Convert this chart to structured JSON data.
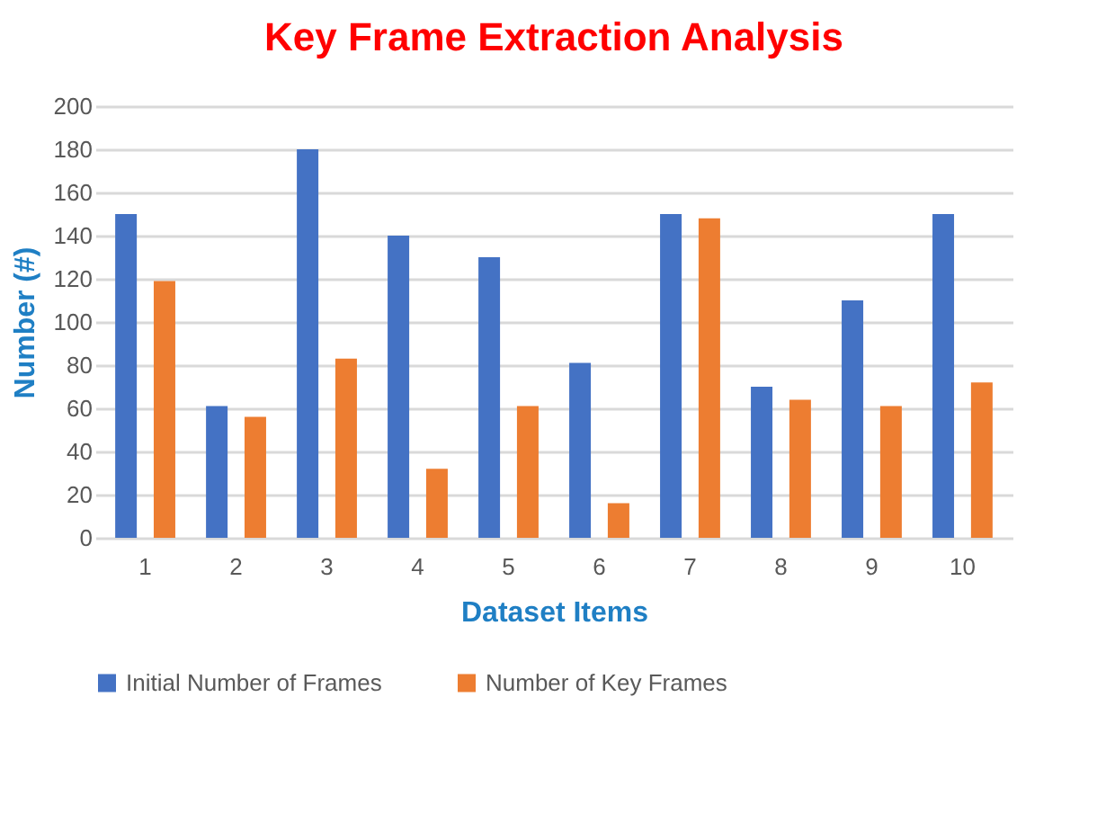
{
  "chart_data": {
    "type": "bar",
    "title": "Key Frame Extraction Analysis",
    "xlabel": "Dataset Items",
    "ylabel": "Number (#)",
    "categories": [
      "1",
      "2",
      "3",
      "4",
      "5",
      "6",
      "7",
      "8",
      "9",
      "10"
    ],
    "series": [
      {
        "name": "Initial Number of Frames",
        "color": "#4472c4",
        "values": [
          150,
          61,
          180,
          140,
          130,
          81,
          150,
          70,
          110,
          150
        ]
      },
      {
        "name": "Number of Key Frames",
        "color": "#ed7d31",
        "values": [
          119,
          56,
          83,
          32,
          61,
          16,
          148,
          64,
          61,
          72
        ]
      }
    ],
    "ylim": [
      0,
      200
    ],
    "yticks": [
      0,
      20,
      40,
      60,
      80,
      100,
      120,
      140,
      160,
      180,
      200
    ],
    "grid": "y",
    "legend": "bottom"
  }
}
